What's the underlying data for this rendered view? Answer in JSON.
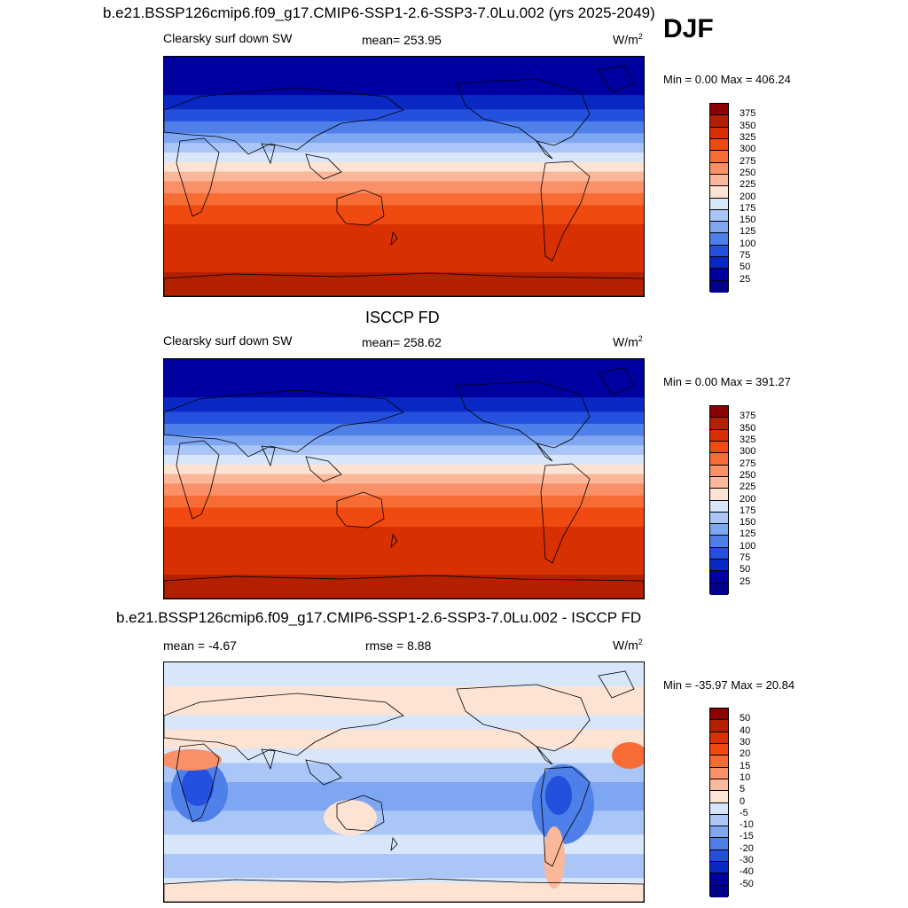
{
  "season": "DJF",
  "panels": [
    {
      "title": "b.e21.BSSP126cmip6.f09_g17.CMIP6-SSP1-2.6-SSP3-7.0Lu.002 (yrs 2025-2049)",
      "left": "Clearsky surf down SW",
      "center": "mean= 253.95",
      "units": "W/m",
      "units_sup": "2",
      "minmax": "Min =   0.00 Max = 406.24",
      "colorbar_labels": [
        "375",
        "350",
        "325",
        "300",
        "275",
        "250",
        "225",
        "200",
        "175",
        "150",
        "125",
        "100",
        "75",
        "50",
        "25"
      ],
      "map_kind": "abs"
    },
    {
      "title": "ISCCP FD",
      "left": "Clearsky surf down SW",
      "center": "mean= 258.62",
      "units": "W/m",
      "units_sup": "2",
      "minmax": "Min =   0.00 Max = 391.27",
      "colorbar_labels": [
        "375",
        "350",
        "325",
        "300",
        "275",
        "250",
        "225",
        "200",
        "175",
        "150",
        "125",
        "100",
        "75",
        "50",
        "25"
      ],
      "map_kind": "abs2"
    },
    {
      "title": "b.e21.BSSP126cmip6.f09_g17.CMIP6-SSP1-2.6-SSP3-7.0Lu.002 - ISCCP FD",
      "left": "mean =  -4.67",
      "center": "rmse =   8.88",
      "units": "W/m",
      "units_sup": "2",
      "minmax": "Min = -35.97 Max =  20.84",
      "colorbar_labels": [
        "50",
        "40",
        "30",
        "20",
        "15",
        "10",
        "5",
        "0",
        "-5",
        "-10",
        "-15",
        "-20",
        "-30",
        "-40",
        "-50"
      ],
      "map_kind": "diff"
    }
  ],
  "colors": {
    "abs_scale": [
      "#8b0000",
      "#b22000",
      "#d83000",
      "#f04a10",
      "#f76c35",
      "#f99068",
      "#fbb79a",
      "#fde3d4",
      "#d8e6fa",
      "#a9c6f7",
      "#7ea6f1",
      "#4f7fe9",
      "#2550de",
      "#0a28c4",
      "#0000a0",
      "#00008b"
    ],
    "diff_scale": [
      "#8b0000",
      "#b22000",
      "#d83000",
      "#f04a10",
      "#f76c35",
      "#f99068",
      "#fbb79a",
      "#fde3d4",
      "#d8e6fa",
      "#a9c6f7",
      "#7ea6f1",
      "#4f7fe9",
      "#2550de",
      "#0a28c4",
      "#0000a0",
      "#00008b"
    ]
  }
}
